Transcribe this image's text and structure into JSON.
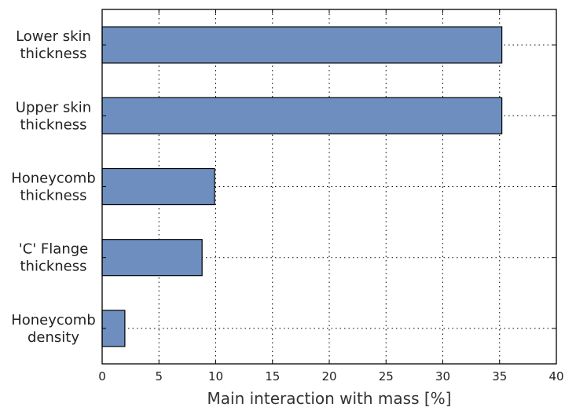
{
  "chart_data": {
    "type": "bar",
    "orientation": "horizontal",
    "categories": [
      [
        "Lower skin",
        "thickness"
      ],
      [
        "Upper skin",
        "thickness"
      ],
      [
        "Honeycomb",
        "thickness"
      ],
      [
        "'C' Flange",
        "thickness"
      ],
      [
        "Honeycomb",
        "density"
      ]
    ],
    "values": [
      35.2,
      35.2,
      9.9,
      8.8,
      2.0
    ],
    "xlabel": "Main interaction with mass [%]",
    "ylabel": "",
    "xlim": [
      0,
      40
    ],
    "xticks": [
      "0",
      "5",
      "10",
      "15",
      "20",
      "25",
      "30",
      "35",
      "40"
    ],
    "grid": true,
    "bar_color": "#6d8ebf",
    "legend": "none"
  }
}
